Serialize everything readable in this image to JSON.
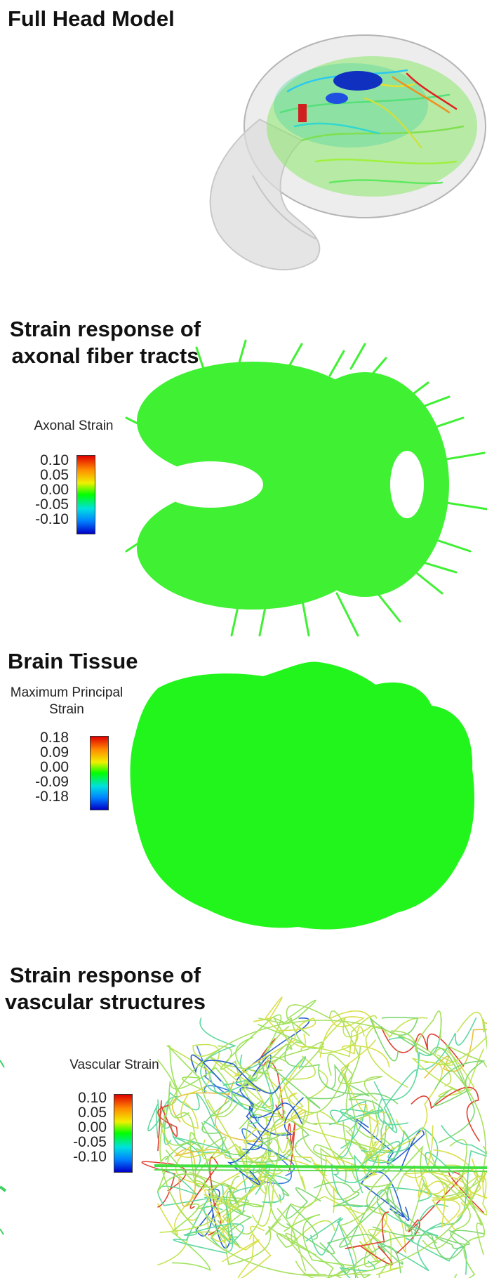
{
  "panels": [
    {
      "title_lines": [
        "Full Head Model"
      ]
    },
    {
      "title_lines": [
        "Strain response of",
        "axonal fiber tracts"
      ],
      "colorbar": {
        "title_lines": [
          "Axonal Strain"
        ],
        "ticks": [
          "0.10",
          "0.05",
          "0.00",
          "-0.05",
          "-0.10"
        ]
      }
    },
    {
      "title_lines": [
        "Brain Tissue"
      ],
      "colorbar": {
        "title_lines": [
          "Maximum Principal",
          "Strain"
        ],
        "ticks": [
          "0.18",
          "0.09",
          "0.00",
          "-0.09",
          "-0.18"
        ]
      }
    },
    {
      "title_lines": [
        "Strain response of",
        "vascular structures"
      ],
      "colorbar": {
        "title_lines": [
          "Vascular Strain"
        ],
        "ticks": [
          "0.10",
          "0.05",
          "0.00",
          "-0.05",
          "-0.10"
        ]
      }
    }
  ],
  "colors": {
    "jet_top": "#e00000",
    "jet_mid": "#00ff00",
    "jet_bottom": "#0000c8",
    "tissue": "#22f51c",
    "fiber": "#3ff033"
  }
}
